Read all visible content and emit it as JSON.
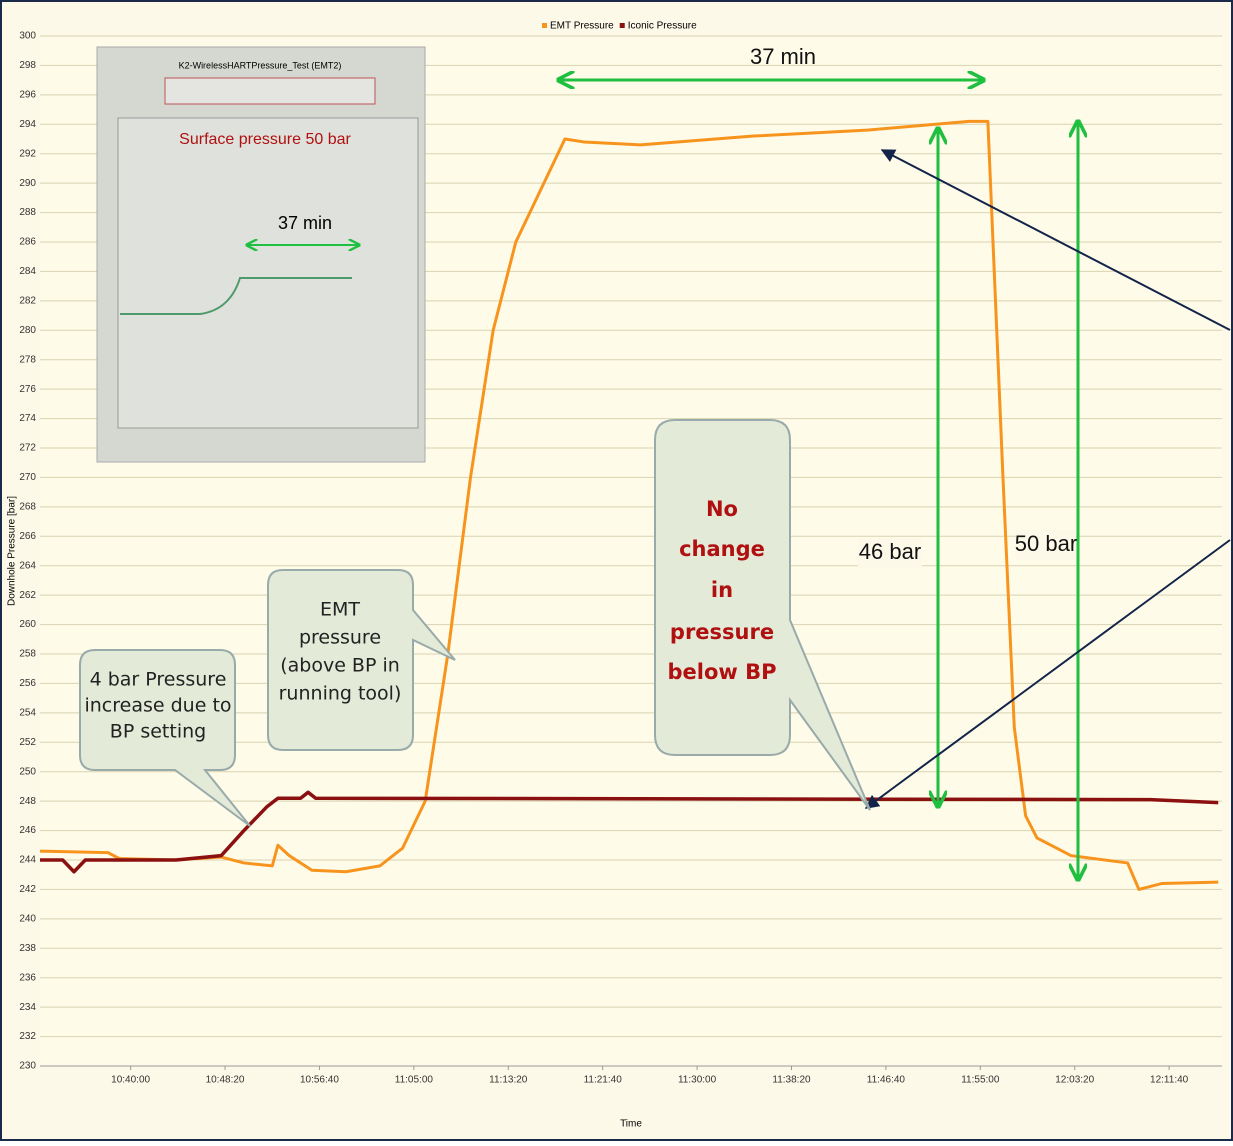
{
  "chart_data": {
    "type": "line",
    "xlabel": "Time",
    "ylabel": "Downhole Pressure [bar]",
    "xlim": [
      "10:32:00",
      "12:16:20"
    ],
    "xticks": [
      "10:40:00",
      "10:48:20",
      "10:56:40",
      "11:05:00",
      "11:13:20",
      "11:21:40",
      "11:30:00",
      "11:38:20",
      "11:46:40",
      "11:55:00",
      "12:03:20",
      "12:11:40"
    ],
    "ylim": [
      230,
      300
    ],
    "yticks": [
      230,
      232,
      234,
      236,
      238,
      240,
      242,
      244,
      246,
      248,
      250,
      252,
      254,
      256,
      258,
      260,
      262,
      264,
      266,
      268,
      270,
      272,
      274,
      276,
      278,
      280,
      282,
      284,
      286,
      288,
      290,
      292,
      294,
      296,
      298,
      300
    ],
    "grid": true,
    "legend": "top",
    "series": [
      {
        "name": "EMT Pressure",
        "color": "#f7941d",
        "x": [
          "10:32:00",
          "10:38:00",
          "10:39:00",
          "10:44:00",
          "10:48:00",
          "10:50:00",
          "10:52:30",
          "10:53:00",
          "10:54:00",
          "10:56:00",
          "10:59:00",
          "11:02:00",
          "11:04:00",
          "11:06:00",
          "11:08:00",
          "11:10:00",
          "11:12:00",
          "11:14:00",
          "11:18:20",
          "11:20:00",
          "11:25:00",
          "11:35:00",
          "11:45:00",
          "11:54:00",
          "11:55:40",
          "11:57:00",
          "11:58:00",
          "11:59:00",
          "12:00:00",
          "12:03:00",
          "12:08:00",
          "12:09:00",
          "12:11:00",
          "12:16:00"
        ],
        "values": [
          244.6,
          244.5,
          244.1,
          244.0,
          244.2,
          243.8,
          243.6,
          245.0,
          244.3,
          243.3,
          243.2,
          243.6,
          244.8,
          248.0,
          258.0,
          270.0,
          280.0,
          286.0,
          293.0,
          292.8,
          292.6,
          293.2,
          293.6,
          294.2,
          294.2,
          270.0,
          253.0,
          247.0,
          245.5,
          244.3,
          243.8,
          242.0,
          242.4,
          242.5
        ]
      },
      {
        "name": "Iconic Pressure",
        "color": "#8b1010",
        "x": [
          "10:32:00",
          "10:34:00",
          "10:35:00",
          "10:36:00",
          "10:44:00",
          "10:48:00",
          "10:50:00",
          "10:52:00",
          "10:53:00",
          "10:55:00",
          "10:55:40",
          "10:56:20",
          "12:10:00",
          "12:16:00"
        ],
        "values": [
          244.0,
          244.0,
          243.2,
          244.0,
          244.0,
          244.3,
          246.0,
          247.6,
          248.2,
          248.2,
          248.6,
          248.2,
          248.1,
          247.9
        ]
      }
    ],
    "annotations": {
      "duration": "37 min",
      "delta_iconic": "46 bar",
      "delta_surface": "50 bar",
      "callout_bp": [
        "4 bar Pressure",
        "increase due to",
        "BP setting"
      ],
      "callout_emt": [
        "EMT",
        "pressure",
        "(above BP in",
        "running tool)"
      ],
      "callout_iconic": [
        "No",
        "change",
        "in",
        "pressure",
        "below BP"
      ]
    },
    "inset": {
      "title": "K2-WirelessHARTPressure_Test (EMT2)",
      "note": "Surface pressure 50 bar",
      "duration": "37 min"
    }
  }
}
